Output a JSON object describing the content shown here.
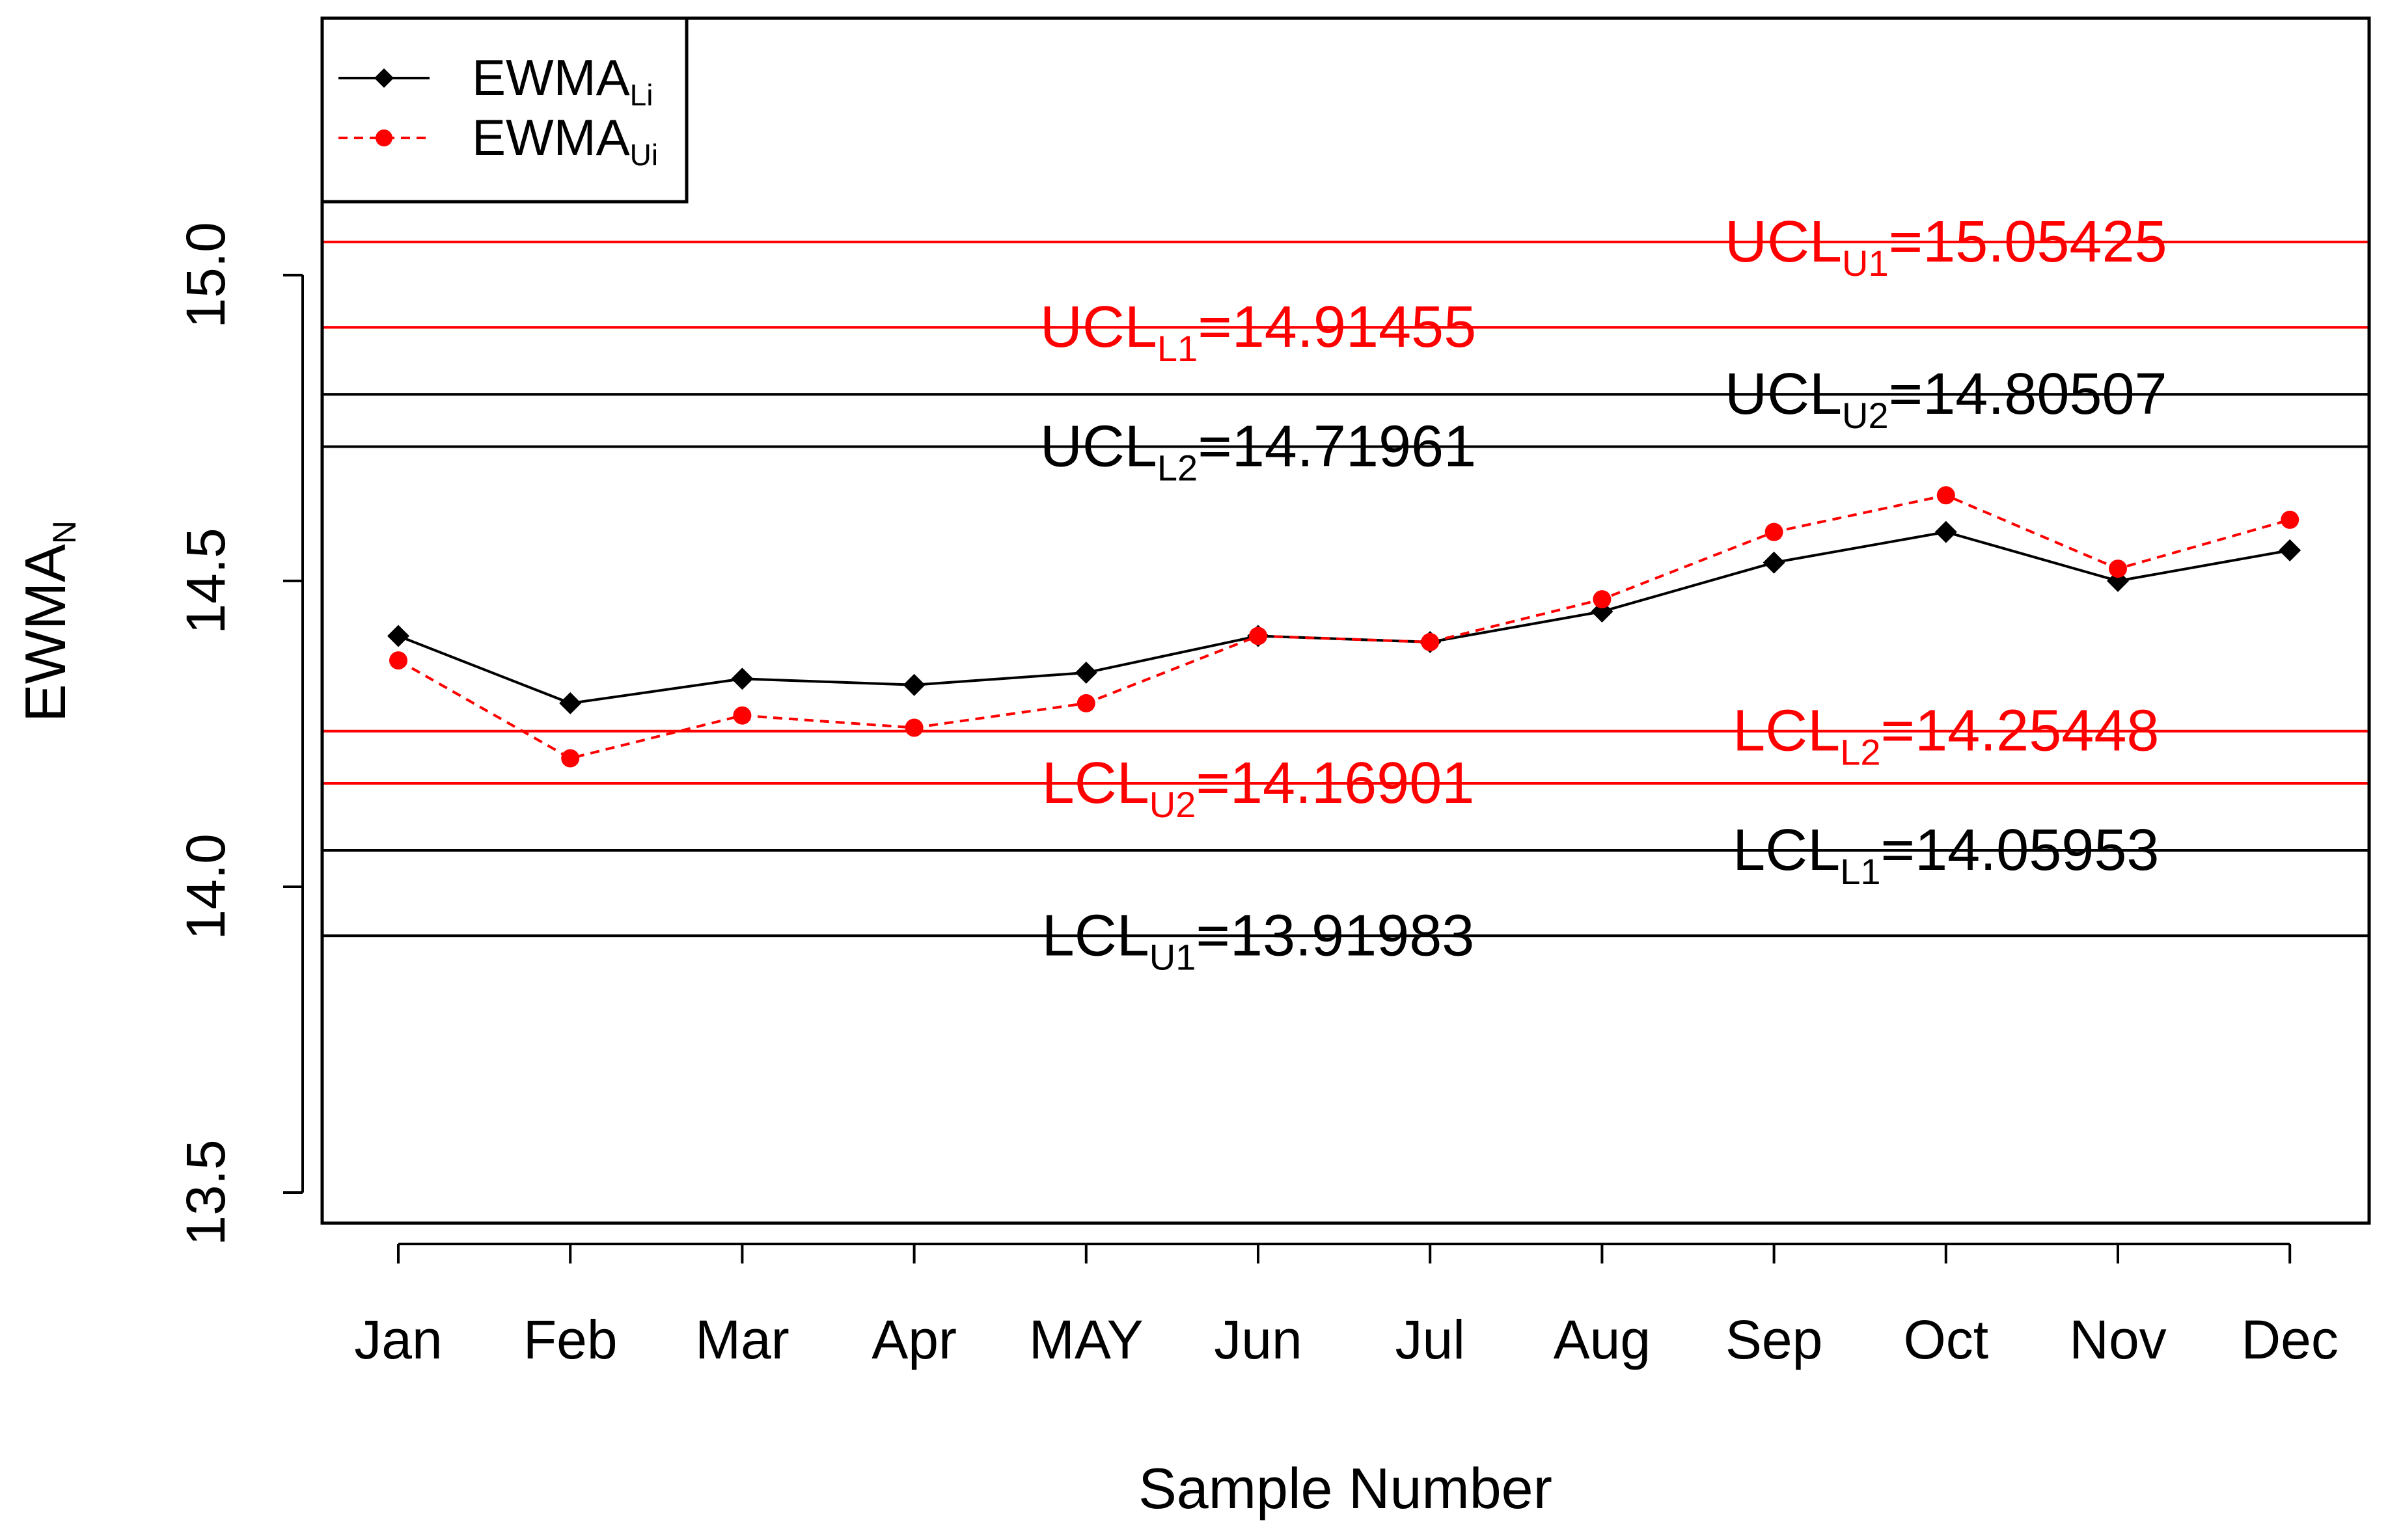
{
  "chart_data": {
    "type": "line",
    "title": "",
    "xlabel": "Sample Number",
    "ylabel": {
      "main": "EWMA",
      "sub": "N"
    },
    "categories": [
      "Jan",
      "Feb",
      "Mar",
      "Apr",
      "MAY",
      "Jun",
      "Jul",
      "Aug",
      "Sep",
      "Oct",
      "Nov",
      "Dec"
    ],
    "ylim": [
      13.45,
      15.42
    ],
    "yticks": [
      13.5,
      14.0,
      14.5,
      15.0
    ],
    "ytick_labels": [
      "13.5",
      "14.0",
      "14.5",
      "15.0"
    ],
    "series": [
      {
        "name": "EWMA",
        "sub": "Li",
        "color": "#000000",
        "line_style": "solid",
        "marker": "diamond",
        "values": [
          14.41,
          14.3,
          14.34,
          14.33,
          14.35,
          14.41,
          14.4,
          14.45,
          14.53,
          14.58,
          14.5,
          14.55
        ]
      },
      {
        "name": "EWMA",
        "sub": "Ui",
        "color": "#ff0000",
        "line_style": "dashed",
        "marker": "circle",
        "values": [
          14.37,
          14.21,
          14.28,
          14.26,
          14.3,
          14.41,
          14.4,
          14.47,
          14.58,
          14.64,
          14.52,
          14.6
        ]
      }
    ],
    "limits": [
      {
        "main": "UCL",
        "sub": "U1",
        "value": 15.05425,
        "value_text": "=15.05425",
        "color": "#ff0000",
        "label_cat": 9.0
      },
      {
        "main": "UCL",
        "sub": "L1",
        "value": 14.91455,
        "value_text": "=14.91455",
        "color": "#ff0000",
        "label_cat": 5.0
      },
      {
        "main": "UCL",
        "sub": "U2",
        "value": 14.80507,
        "value_text": "=14.80507",
        "color": "#000000",
        "label_cat": 9.0
      },
      {
        "main": "UCL",
        "sub": "L2",
        "value": 14.71961,
        "value_text": "=14.71961",
        "color": "#000000",
        "label_cat": 5.0
      },
      {
        "main": "LCL",
        "sub": "L2",
        "value": 14.25448,
        "value_text": "=14.25448",
        "color": "#ff0000",
        "label_cat": 9.0
      },
      {
        "main": "LCL",
        "sub": "U2",
        "value": 14.16901,
        "value_text": "=14.16901",
        "color": "#ff0000",
        "label_cat": 5.0
      },
      {
        "main": "LCL",
        "sub": "L1",
        "value": 14.05953,
        "value_text": "=14.05953",
        "color": "#000000",
        "label_cat": 9.0
      },
      {
        "main": "LCL",
        "sub": "U1",
        "value": 13.91983,
        "value_text": "=13.91983",
        "color": "#000000",
        "label_cat": 5.0
      }
    ],
    "legend": {
      "position": "top-left",
      "entries": [
        {
          "main": "EWMA",
          "sub": "Li"
        },
        {
          "main": "EWMA",
          "sub": "Ui"
        }
      ]
    },
    "grid": false
  }
}
